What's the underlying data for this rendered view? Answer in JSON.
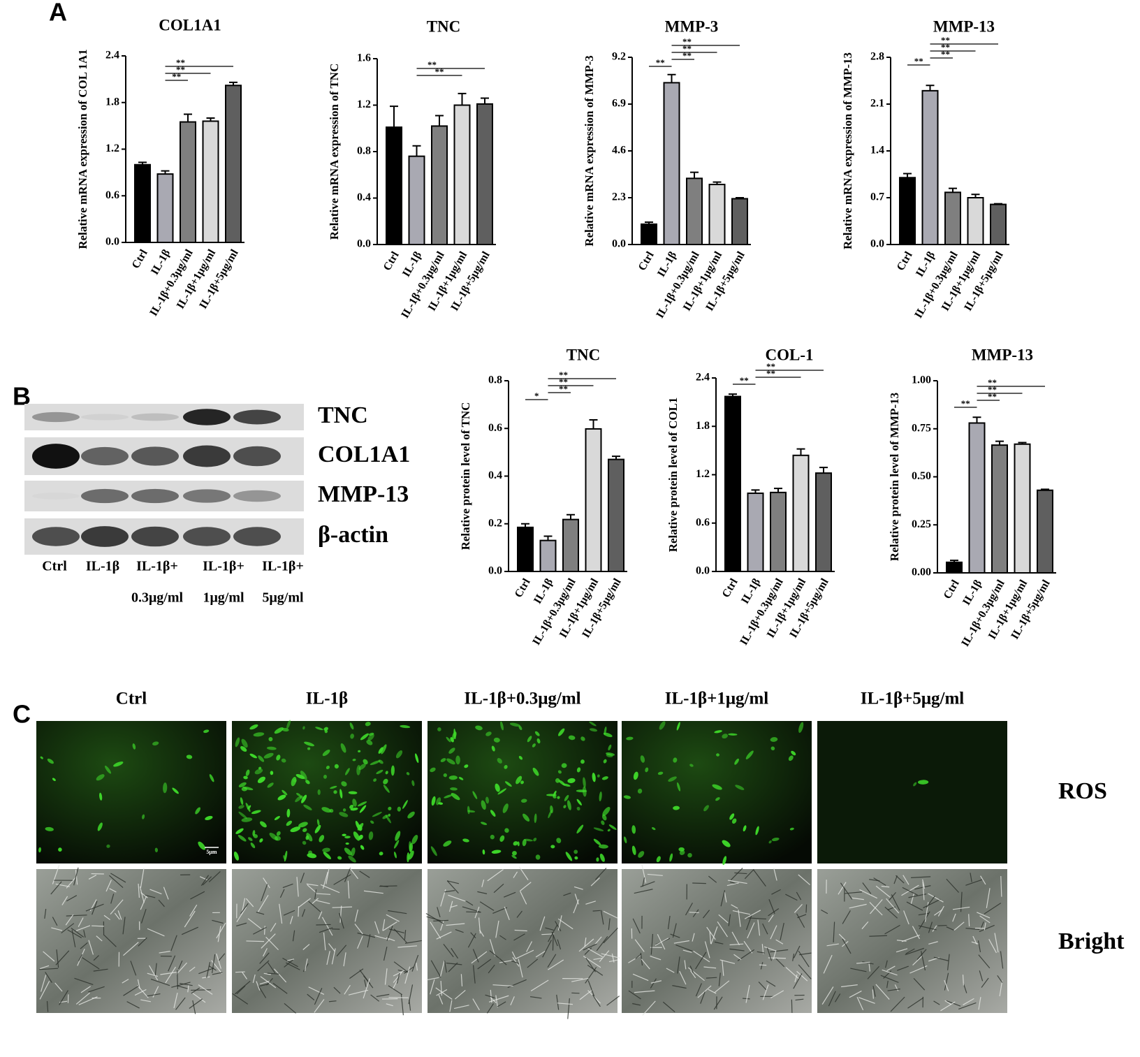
{
  "panel_labels": [
    "A",
    "B",
    "C"
  ],
  "chart_data": [
    {
      "type": "bar",
      "title": "COL1A1",
      "ylabel": "Relative mRNA expression of COL 1A1",
      "categories": [
        "Ctrl",
        "IL-1β",
        "IL-1β+0.3μg/ml",
        "IL-1β+1μg/ml",
        "IL-1β+5μg/ml"
      ],
      "values": [
        1.0,
        0.88,
        1.55,
        1.56,
        2.02
      ],
      "errors": [
        0.03,
        0.04,
        0.1,
        0.04,
        0.04
      ],
      "colors": [
        "#000000",
        "#a9a9b2",
        "#7f7f7f",
        "#d9d9d9",
        "#5f5f5f"
      ],
      "ylim": [
        0,
        2.4
      ],
      "yticks": [
        {
          "value": 0,
          "label": "0.0"
        },
        0.6,
        1.2,
        1.8,
        2.4
      ],
      "comparisons": [
        {
          "label": "**",
          "between": [
            1,
            2
          ]
        },
        {
          "label": "**",
          "between": [
            1,
            3
          ]
        },
        {
          "label": "**",
          "between": [
            1,
            4
          ]
        }
      ]
    },
    {
      "type": "bar",
      "title": "TNC",
      "ylabel": "Relative mRNA expression of  TNC",
      "categories": [
        "Ctrl",
        "IL-1β",
        "IL-1β+0.3μg/ml",
        "IL-1β+1μg/ml",
        "IL-1β+5μg/ml"
      ],
      "values": [
        1.01,
        0.76,
        1.02,
        1.2,
        1.21
      ],
      "errors": [
        0.18,
        0.09,
        0.09,
        0.1,
        0.05
      ],
      "colors": [
        "#000000",
        "#a9a9b2",
        "#7f7f7f",
        "#d9d9d9",
        "#5f5f5f"
      ],
      "ylim": [
        0,
        1.6
      ],
      "yticks": [
        {
          "value": 0,
          "label": "0.0"
        },
        0.4,
        0.8,
        1.2,
        1.6
      ],
      "comparisons": [
        {
          "label": "**",
          "between": [
            1,
            3
          ]
        },
        {
          "label": "**",
          "between": [
            1,
            4
          ]
        }
      ]
    },
    {
      "type": "bar",
      "title": "MMP-3",
      "ylabel": "Relative mRNA expression of  MMP-3",
      "categories": [
        "Ctrl",
        "IL-1β",
        "IL-1β+0.3μg/ml",
        "IL-1β+1μg/ml",
        "IL-1β+5μg/ml"
      ],
      "values": [
        1.0,
        7.95,
        3.25,
        2.95,
        2.25
      ],
      "errors": [
        0.1,
        0.4,
        0.3,
        0.12,
        0.05
      ],
      "colors": [
        "#000000",
        "#a9a9b2",
        "#7f7f7f",
        "#d9d9d9",
        "#5f5f5f"
      ],
      "ylim": [
        0,
        9.2
      ],
      "yticks": [
        {
          "value": 0,
          "label": "0.0"
        },
        2.3,
        4.6,
        6.9,
        9.2
      ],
      "comparisons": [
        {
          "label": "**",
          "between": [
            0,
            1
          ]
        },
        {
          "label": "**",
          "between": [
            1,
            2
          ]
        },
        {
          "label": "**",
          "between": [
            1,
            3
          ]
        },
        {
          "label": "**",
          "between": [
            1,
            4
          ]
        }
      ]
    },
    {
      "type": "bar",
      "title": "MMP-13",
      "ylabel": "Relative mRNA expression of  MMP-13",
      "categories": [
        "Ctrl",
        "IL-1β",
        "IL-1β+0.3μg/ml",
        "IL-1β+1μg/ml",
        "IL-1β+5μg/ml"
      ],
      "values": [
        1.0,
        2.3,
        0.78,
        0.7,
        0.6
      ],
      "errors": [
        0.06,
        0.08,
        0.06,
        0.05,
        0.01
      ],
      "colors": [
        "#000000",
        "#a9a9b2",
        "#7f7f7f",
        "#d9d9d9",
        "#5f5f5f"
      ],
      "ylim": [
        0,
        2.8
      ],
      "yticks": [
        {
          "value": 0,
          "label": "0.0"
        },
        0.7,
        1.4,
        2.1,
        2.8
      ],
      "comparisons": [
        {
          "label": "**",
          "between": [
            0,
            1
          ]
        },
        {
          "label": "**",
          "between": [
            1,
            2
          ]
        },
        {
          "label": "**",
          "between": [
            1,
            3
          ]
        },
        {
          "label": "**",
          "between": [
            1,
            4
          ]
        }
      ]
    },
    {
      "type": "bar",
      "title": "TNC",
      "ylabel": "Relative protein level of TNC",
      "categories": [
        "Ctrl",
        "IL-1β",
        "IL-1β+0.3μg/ml",
        "IL-1β+1μg/ml",
        "IL-1β+5μg/ml"
      ],
      "values": [
        0.185,
        0.13,
        0.218,
        0.598,
        0.47
      ],
      "errors": [
        0.015,
        0.018,
        0.02,
        0.038,
        0.013
      ],
      "colors": [
        "#000000",
        "#a9a9b2",
        "#7f7f7f",
        "#d9d9d9",
        "#5f5f5f"
      ],
      "ylim": [
        0,
        0.8
      ],
      "yticks": [
        {
          "value": 0,
          "label": "0.0"
        },
        0.2,
        0.4,
        0.6,
        0.8
      ],
      "comparisons": [
        {
          "label": "*",
          "between": [
            0,
            1
          ]
        },
        {
          "label": "**",
          "between": [
            1,
            2
          ]
        },
        {
          "label": "**",
          "between": [
            1,
            3
          ]
        },
        {
          "label": "**",
          "between": [
            1,
            4
          ]
        }
      ]
    },
    {
      "type": "bar",
      "title": "COL-1",
      "ylabel": "Relative protein level of COL1",
      "categories": [
        "Ctrl",
        "IL-1β",
        "IL-1β+0.3μg/ml",
        "IL-1β+1μg/ml",
        "IL-1β+5μg/ml"
      ],
      "values": [
        2.17,
        0.97,
        0.98,
        1.44,
        1.22
      ],
      "errors": [
        0.03,
        0.04,
        0.05,
        0.08,
        0.07
      ],
      "colors": [
        "#000000",
        "#a9a9b2",
        "#7f7f7f",
        "#d9d9d9",
        "#5f5f5f"
      ],
      "ylim": [
        0,
        2.4
      ],
      "yticks": [
        {
          "value": 0,
          "label": "0.0"
        },
        0.6,
        1.2,
        1.8,
        2.4
      ],
      "comparisons": [
        {
          "label": "**",
          "between": [
            0,
            1
          ]
        },
        {
          "label": "**",
          "between": [
            1,
            3
          ]
        },
        {
          "label": "**",
          "between": [
            1,
            4
          ]
        }
      ]
    },
    {
      "type": "bar",
      "title": "MMP-13",
      "ylabel": "Relative protein level of MMP-13",
      "categories": [
        "Ctrl",
        "IL-1β",
        "IL-1β+0.3μg/ml",
        "IL-1β+1μg/ml",
        "IL-1β+5μg/ml"
      ],
      "values": [
        0.055,
        0.78,
        0.665,
        0.67,
        0.43
      ],
      "errors": [
        0.01,
        0.03,
        0.02,
        0.008,
        0.005
      ],
      "colors": [
        "#000000",
        "#a9a9b2",
        "#7f7f7f",
        "#d9d9d9",
        "#5f5f5f"
      ],
      "ylim": [
        0,
        1.0
      ],
      "yticks": [
        {
          "value": 0,
          "label": "0.00"
        },
        {
          "value": 0.25,
          "label": "0.25"
        },
        {
          "value": 0.5,
          "label": "0.50"
        },
        {
          "value": 0.75,
          "label": "0.75"
        },
        {
          "value": 1.0,
          "label": "1.00"
        }
      ],
      "comparisons": [
        {
          "label": "**",
          "between": [
            0,
            1
          ]
        },
        {
          "label": "**",
          "between": [
            1,
            2
          ]
        },
        {
          "label": "**",
          "between": [
            1,
            3
          ]
        },
        {
          "label": "**",
          "between": [
            1,
            4
          ]
        }
      ]
    }
  ],
  "western_blot": {
    "bands": [
      "TNC",
      "COL1A1",
      "MMP-13",
      "β-actin"
    ],
    "lanes": [
      [
        "Ctrl"
      ],
      [
        "IL-1β"
      ],
      [
        "IL-1β+",
        "0.3μg/ml"
      ],
      [
        "IL-1β+",
        "1μg/ml"
      ],
      [
        "IL-1β+",
        "5μg/ml"
      ]
    ]
  },
  "microscopy": {
    "columns": [
      "Ctrl",
      "IL-1β",
      "IL-1β+0.3μg/ml",
      "IL-1β+1μg/ml",
      "IL-1β+5μg/ml"
    ],
    "rows": [
      "ROS",
      "Bright"
    ],
    "scale_bar": "5μm"
  }
}
